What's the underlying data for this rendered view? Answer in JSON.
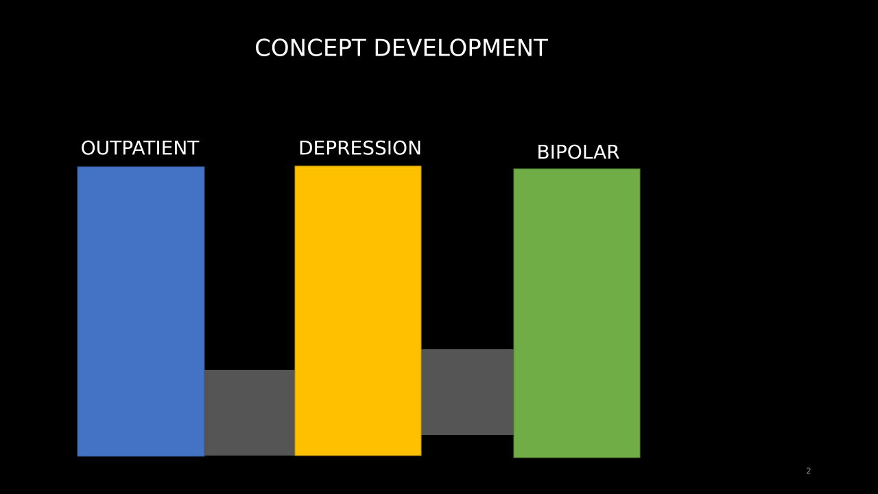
{
  "slide": {
    "title": "CONCEPT DEVELOPMENT",
    "labels": [
      "OUTPATIENT",
      "DEPRESSION",
      "BIPOLAR"
    ],
    "slide_number": 2
  }
}
